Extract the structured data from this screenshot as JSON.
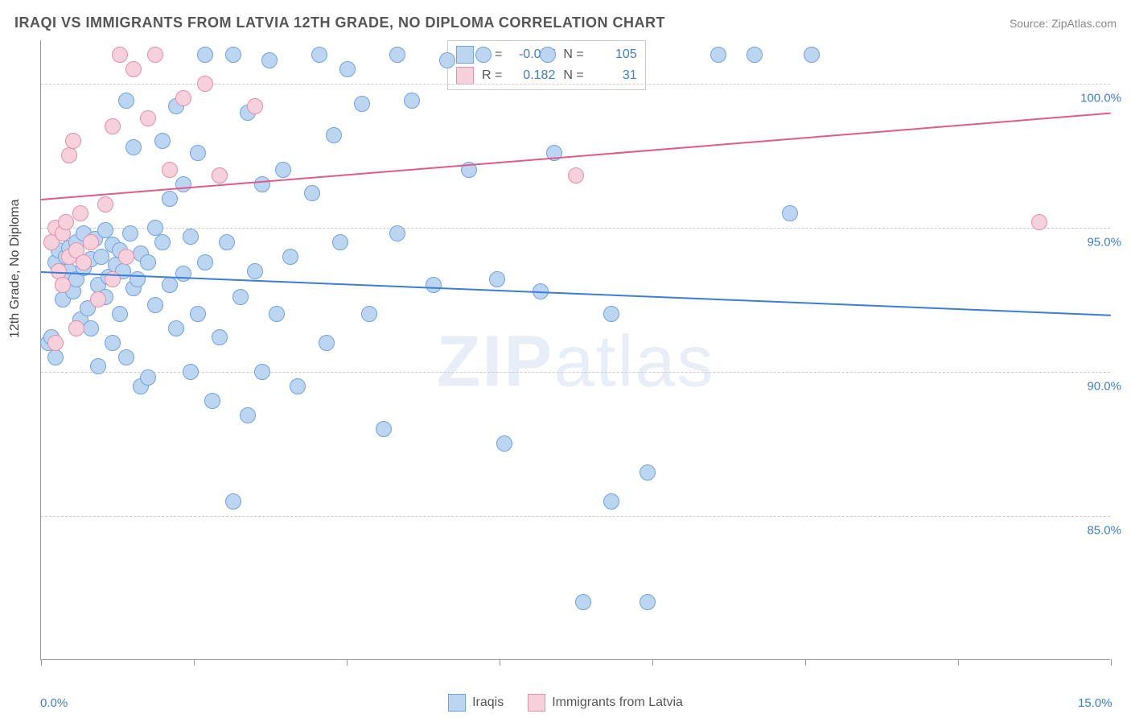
{
  "title": "IRAQI VS IMMIGRANTS FROM LATVIA 12TH GRADE, NO DIPLOMA CORRELATION CHART",
  "source": "Source: ZipAtlas.com",
  "y_axis_label": "12th Grade, No Diploma",
  "watermark": {
    "bold": "ZIP",
    "light": "atlas"
  },
  "chart": {
    "type": "scatter",
    "xlim": [
      0,
      15
    ],
    "ylim": [
      80,
      101.5
    ],
    "x_tick_positions": [
      0,
      2.14,
      4.29,
      6.43,
      8.57,
      10.71,
      12.86,
      15
    ],
    "x_tick_labels": {
      "0": "0.0%",
      "15": "15.0%"
    },
    "y_grid": [
      85,
      90,
      95,
      100
    ],
    "y_tick_labels": [
      "85.0%",
      "90.0%",
      "95.0%",
      "100.0%"
    ],
    "background_color": "#ffffff",
    "grid_color": "#cccccc",
    "axis_color": "#999999",
    "dot_radius": 10,
    "series": [
      {
        "name": "Iraqis",
        "fill": "#bcd5f0",
        "stroke": "#6fa3e0",
        "trend_color": "#3b7dd8",
        "trend": {
          "y_at_x0": 93.5,
          "y_at_xmax": 92.0
        },
        "stats": {
          "R": "-0.077",
          "N": "105"
        },
        "points": [
          [
            0.1,
            91.0
          ],
          [
            0.15,
            91.2
          ],
          [
            0.2,
            90.5
          ],
          [
            0.2,
            93.8
          ],
          [
            0.25,
            94.2
          ],
          [
            0.3,
            92.5
          ],
          [
            0.3,
            93.0
          ],
          [
            0.35,
            94.0
          ],
          [
            0.4,
            93.5
          ],
          [
            0.4,
            94.3
          ],
          [
            0.45,
            92.8
          ],
          [
            0.5,
            94.5
          ],
          [
            0.5,
            93.2
          ],
          [
            0.55,
            91.8
          ],
          [
            0.6,
            93.6
          ],
          [
            0.6,
            94.8
          ],
          [
            0.65,
            92.2
          ],
          [
            0.7,
            93.9
          ],
          [
            0.7,
            91.5
          ],
          [
            0.75,
            94.6
          ],
          [
            0.8,
            93.0
          ],
          [
            0.8,
            90.2
          ],
          [
            0.85,
            94.0
          ],
          [
            0.9,
            92.6
          ],
          [
            0.9,
            94.9
          ],
          [
            0.95,
            93.3
          ],
          [
            1.0,
            94.4
          ],
          [
            1.0,
            91.0
          ],
          [
            1.05,
            93.7
          ],
          [
            1.1,
            92.0
          ],
          [
            1.1,
            94.2
          ],
          [
            1.15,
            93.5
          ],
          [
            1.2,
            90.5
          ],
          [
            1.2,
            99.4
          ],
          [
            1.25,
            94.8
          ],
          [
            1.3,
            92.9
          ],
          [
            1.3,
            97.8
          ],
          [
            1.35,
            93.2
          ],
          [
            1.4,
            94.1
          ],
          [
            1.4,
            89.5
          ],
          [
            1.5,
            93.8
          ],
          [
            1.5,
            89.8
          ],
          [
            1.6,
            95.0
          ],
          [
            1.6,
            92.3
          ],
          [
            1.7,
            94.5
          ],
          [
            1.7,
            98.0
          ],
          [
            1.8,
            93.0
          ],
          [
            1.8,
            96.0
          ],
          [
            1.9,
            99.2
          ],
          [
            1.9,
            91.5
          ],
          [
            2.0,
            93.4
          ],
          [
            2.0,
            96.5
          ],
          [
            2.1,
            90.0
          ],
          [
            2.1,
            94.7
          ],
          [
            2.2,
            97.6
          ],
          [
            2.2,
            92.0
          ],
          [
            2.3,
            101.0
          ],
          [
            2.3,
            93.8
          ],
          [
            2.4,
            89.0
          ],
          [
            2.5,
            96.8
          ],
          [
            2.5,
            91.2
          ],
          [
            2.6,
            94.5
          ],
          [
            2.7,
            101.0
          ],
          [
            2.7,
            85.5
          ],
          [
            2.8,
            92.6
          ],
          [
            2.9,
            99.0
          ],
          [
            2.9,
            88.5
          ],
          [
            3.0,
            93.5
          ],
          [
            3.1,
            96.5
          ],
          [
            3.1,
            90.0
          ],
          [
            3.2,
            100.8
          ],
          [
            3.3,
            92.0
          ],
          [
            3.4,
            97.0
          ],
          [
            3.5,
            94.0
          ],
          [
            3.6,
            89.5
          ],
          [
            3.8,
            96.2
          ],
          [
            3.9,
            101.0
          ],
          [
            4.0,
            91.0
          ],
          [
            4.1,
            98.2
          ],
          [
            4.2,
            94.5
          ],
          [
            4.3,
            100.5
          ],
          [
            4.5,
            99.3
          ],
          [
            4.6,
            92.0
          ],
          [
            4.8,
            88.0
          ],
          [
            5.0,
            94.8
          ],
          [
            5.0,
            101.0
          ],
          [
            5.2,
            99.4
          ],
          [
            5.5,
            93.0
          ],
          [
            5.7,
            100.8
          ],
          [
            6.0,
            97.0
          ],
          [
            6.2,
            101.0
          ],
          [
            6.4,
            93.2
          ],
          [
            6.5,
            87.5
          ],
          [
            7.0,
            92.8
          ],
          [
            7.1,
            101.0
          ],
          [
            7.2,
            97.6
          ],
          [
            7.6,
            82.0
          ],
          [
            8.0,
            92.0
          ],
          [
            8.0,
            85.5
          ],
          [
            8.5,
            86.5
          ],
          [
            8.5,
            82.0
          ],
          [
            9.5,
            101.0
          ],
          [
            10.0,
            101.0
          ],
          [
            10.5,
            95.5
          ],
          [
            10.8,
            101.0
          ]
        ]
      },
      {
        "name": "Immigrants from Latvia",
        "fill": "#f6d0db",
        "stroke": "#e38fae",
        "trend_color": "#e05a8a",
        "trend": {
          "y_at_x0": 96.0,
          "y_at_xmax": 99.0
        },
        "stats": {
          "R": "0.182",
          "N": "31"
        },
        "points": [
          [
            0.15,
            94.5
          ],
          [
            0.2,
            95.0
          ],
          [
            0.2,
            91.0
          ],
          [
            0.25,
            93.5
          ],
          [
            0.3,
            94.8
          ],
          [
            0.3,
            93.0
          ],
          [
            0.35,
            95.2
          ],
          [
            0.4,
            94.0
          ],
          [
            0.4,
            97.5
          ],
          [
            0.45,
            98.0
          ],
          [
            0.5,
            94.2
          ],
          [
            0.5,
            91.5
          ],
          [
            0.55,
            95.5
          ],
          [
            0.6,
            93.8
          ],
          [
            0.7,
            94.5
          ],
          [
            0.8,
            92.5
          ],
          [
            0.9,
            95.8
          ],
          [
            1.0,
            98.5
          ],
          [
            1.0,
            93.2
          ],
          [
            1.1,
            101.0
          ],
          [
            1.2,
            94.0
          ],
          [
            1.3,
            100.5
          ],
          [
            1.5,
            98.8
          ],
          [
            1.6,
            101.0
          ],
          [
            1.8,
            97.0
          ],
          [
            2.0,
            99.5
          ],
          [
            2.3,
            100.0
          ],
          [
            2.5,
            96.8
          ],
          [
            3.0,
            99.2
          ],
          [
            7.5,
            96.8
          ],
          [
            14.0,
            95.2
          ]
        ]
      }
    ]
  },
  "legend": {
    "series1": "Iraqis",
    "series2": "Immigrants from Latvia"
  }
}
